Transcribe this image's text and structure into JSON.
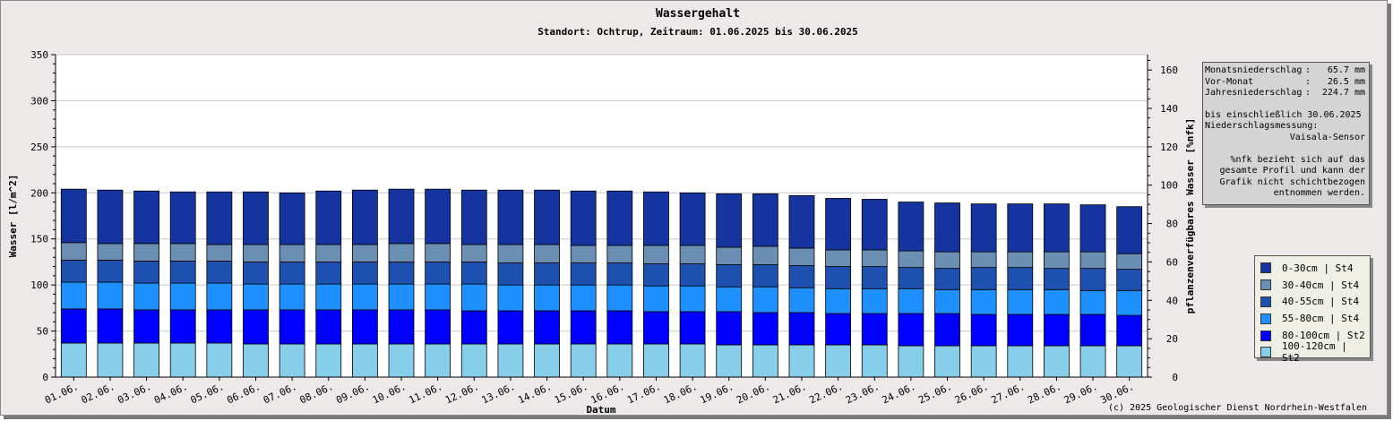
{
  "title": "Wassergehalt",
  "subtitle": "Standort: Ochtrup, Zeitraum: 01.06.2025 bis 30.06.2025",
  "copyright": "(c) 2025 Geologischer Dienst Nordrhein-Westfalen",
  "info_box": {
    "rows": [
      {
        "label": "Monatsniederschlag",
        "sep": ":",
        "value": "65.7 mm"
      },
      {
        "label": "Vor-Monat",
        "sep": ":",
        "value": "26.5 mm"
      },
      {
        "label": "Jahresniederschlag",
        "sep": ":",
        "value": "224.7 mm"
      }
    ],
    "until": "bis einschließlich 30.06.2025",
    "measure_label": "Niederschlagsmessung:",
    "sensor": "Vaisala-Sensor",
    "note_lines": [
      "%nfk bezieht sich auf das",
      "gesamte Profil und kann der",
      "Grafik nicht schichtbezogen",
      "entnommen werden."
    ]
  },
  "chart_data": {
    "type": "bar",
    "stacked": true,
    "title": "Wassergehalt",
    "subtitle": "Standort: Ochtrup, Zeitraum: 01.06.2025 bis 30.06.2025",
    "xlabel": "Datum",
    "ylabel": "Wasser [l/m^2]",
    "y2label": "pflanzenverfügbares Wasser [%nfk]",
    "ylim": [
      0,
      350
    ],
    "y2lim": [
      0,
      168
    ],
    "yticks": [
      0,
      50,
      100,
      150,
      200,
      250,
      300,
      350
    ],
    "y2ticks": [
      0,
      20,
      40,
      60,
      80,
      100,
      120,
      140,
      160
    ],
    "grid": true,
    "legend_position": "right",
    "categories": [
      "01.06.",
      "02.06.",
      "03.06.",
      "04.06.",
      "05.06.",
      "06.06.",
      "07.06.",
      "08.06.",
      "09.06.",
      "10.06.",
      "11.06.",
      "12.06.",
      "13.06.",
      "14.06.",
      "15.06.",
      "16.06.",
      "17.06.",
      "18.06.",
      "19.06.",
      "20.06.",
      "21.06.",
      "22.06.",
      "23.06.",
      "24.06.",
      "25.06.",
      "26.06.",
      "27.06.",
      "28.06.",
      "29.06.",
      "30.06."
    ],
    "series": [
      {
        "name": "100-120cm | St2",
        "color": "#87ceeb",
        "values": [
          37,
          37,
          37,
          37,
          37,
          36,
          36,
          36,
          36,
          36,
          36,
          36,
          36,
          36,
          36,
          36,
          36,
          36,
          35,
          35,
          35,
          35,
          35,
          34,
          34,
          34,
          34,
          34,
          34,
          34
        ]
      },
      {
        "name": "80-100cm | St2",
        "color": "#0000ff",
        "values": [
          37,
          37,
          36,
          36,
          36,
          37,
          37,
          37,
          37,
          37,
          37,
          36,
          36,
          36,
          36,
          36,
          35,
          35,
          36,
          35,
          35,
          34,
          34,
          35,
          35,
          34,
          34,
          34,
          34,
          33
        ]
      },
      {
        "name": "55-80cm | St4",
        "color": "#1e90ff",
        "values": [
          29,
          29,
          29,
          29,
          29,
          28,
          28,
          28,
          28,
          28,
          28,
          29,
          28,
          28,
          28,
          28,
          28,
          28,
          27,
          28,
          27,
          27,
          27,
          27,
          26,
          27,
          27,
          27,
          26,
          27
        ]
      },
      {
        "name": "40-55cm | St4",
        "color": "#1e50b0",
        "values": [
          24,
          24,
          24,
          24,
          24,
          24,
          24,
          24,
          24,
          24,
          24,
          24,
          24,
          24,
          24,
          24,
          24,
          24,
          24,
          24,
          24,
          24,
          24,
          23,
          23,
          24,
          24,
          23,
          24,
          23
        ]
      },
      {
        "name": "30-40cm | St4",
        "color": "#6a8fb2",
        "values": [
          19,
          18,
          19,
          19,
          18,
          19,
          19,
          19,
          19,
          20,
          20,
          19,
          20,
          20,
          19,
          19,
          20,
          20,
          19,
          20,
          19,
          18,
          18,
          18,
          18,
          17,
          17,
          18,
          18,
          17
        ]
      },
      {
        "name": "0-30cm | St4",
        "color": "#1634a0",
        "values": [
          58,
          58,
          57,
          56,
          57,
          57,
          56,
          58,
          59,
          59,
          59,
          59,
          59,
          59,
          59,
          59,
          58,
          57,
          58,
          57,
          57,
          56,
          55,
          53,
          53,
          52,
          52,
          52,
          51,
          51
        ]
      }
    ]
  }
}
